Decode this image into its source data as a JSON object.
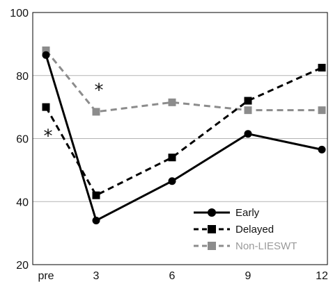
{
  "chart_data": {
    "type": "line",
    "categories": [
      "pre",
      "3",
      "6",
      "9",
      "12"
    ],
    "ylim": [
      20,
      100
    ],
    "yticks": [
      20,
      40,
      60,
      80,
      100
    ],
    "grid": true,
    "legend_position": "bottom-right",
    "series": [
      {
        "name": "Early",
        "values": [
          86.5,
          34,
          46.5,
          61.5,
          56.5
        ],
        "color": "#000000",
        "dash": "solid",
        "marker": "circle"
      },
      {
        "name": "Delayed",
        "values": [
          70,
          42,
          54,
          72,
          82.5
        ],
        "color": "#000000",
        "dash": "dashed",
        "marker": "square"
      },
      {
        "name": "Non-LIESWT",
        "values": [
          88,
          68.5,
          71.5,
          69,
          69
        ],
        "color": "#8c8c8c",
        "dash": "dashed",
        "marker": "square"
      }
    ],
    "annotations": [
      {
        "text": "*",
        "x": "3",
        "y": 76.5
      },
      {
        "text": "*",
        "x": "pre",
        "y": 62
      }
    ]
  }
}
